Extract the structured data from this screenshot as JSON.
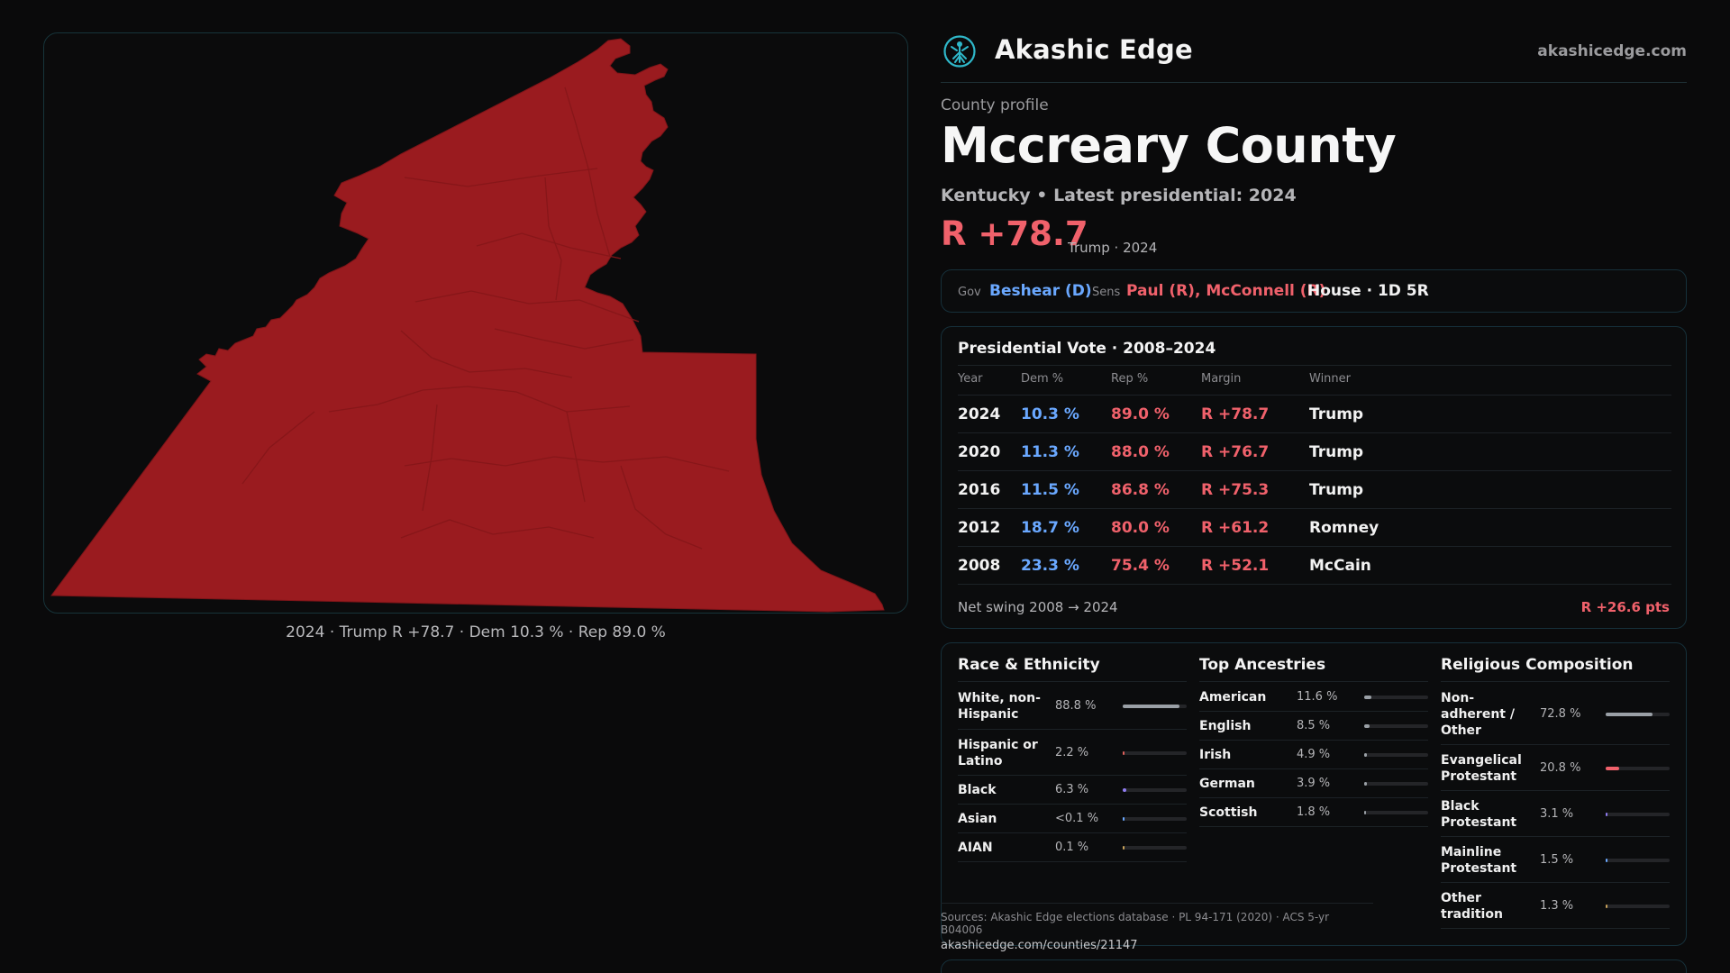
{
  "brand": {
    "name": "Akashic Edge",
    "url": "akashicedge.com",
    "logo_icon": "atom-tree-icon",
    "accent": "#2fb7c9"
  },
  "map": {
    "fill_color": "#9a1b1f",
    "caption": "2024 · Trump R +78.7 · Dem 10.3 % · Rep 89.0 %"
  },
  "profile": {
    "label": "County profile",
    "county": "Mccreary County",
    "subtitle": "Kentucky • Latest presidential: 2024",
    "margin": "R +78.7",
    "margin_note": "Trump · 2024"
  },
  "officials": {
    "gov_label": "Gov",
    "gov": "Beshear (D)",
    "sens_label": "Sens",
    "sens": "Paul (R), McConnell (R)",
    "house": "House · 1D 5R"
  },
  "presidential": {
    "title": "Presidential Vote · 2008–2024",
    "headers": [
      "Year",
      "Dem %",
      "Rep %",
      "Margin",
      "Winner"
    ],
    "rows": [
      {
        "year": "2024",
        "dem": "10.3 %",
        "rep": "89.0 %",
        "margin": "R +78.7",
        "winner": "Trump"
      },
      {
        "year": "2020",
        "dem": "11.3 %",
        "rep": "88.0 %",
        "margin": "R +76.7",
        "winner": "Trump"
      },
      {
        "year": "2016",
        "dem": "11.5 %",
        "rep": "86.8 %",
        "margin": "R +75.3",
        "winner": "Trump"
      },
      {
        "year": "2012",
        "dem": "18.7 %",
        "rep": "80.0 %",
        "margin": "R +61.2",
        "winner": "Romney"
      },
      {
        "year": "2008",
        "dem": "23.3 %",
        "rep": "75.4 %",
        "margin": "R +52.1",
        "winner": "McCain"
      }
    ],
    "swing_label": "Net swing 2008 → 2024",
    "swing_value": "R +26.6 pts"
  },
  "race": {
    "title": "Race & Ethnicity",
    "items": [
      {
        "label": "White, non-Hispanic",
        "value": "88.8 %",
        "pct": 88.8,
        "color": "#9aa0a6"
      },
      {
        "label": "Hispanic or Latino",
        "value": "2.2 %",
        "pct": 2.2,
        "color": "#e0605a"
      },
      {
        "label": "Black",
        "value": "6.3 %",
        "pct": 6.3,
        "color": "#8f7cf0"
      },
      {
        "label": "Asian",
        "value": "<0.1 %",
        "pct": 0.1,
        "color": "#6aa8ff"
      },
      {
        "label": "AIAN",
        "value": "0.1 %",
        "pct": 0.1,
        "color": "#c9a35a"
      }
    ]
  },
  "ancestry": {
    "title": "Top Ancestries",
    "items": [
      {
        "label": "American",
        "value": "11.6 %",
        "pct": 11.6,
        "color": "#9aa0a6"
      },
      {
        "label": "English",
        "value": "8.5 %",
        "pct": 8.5,
        "color": "#9aa0a6"
      },
      {
        "label": "Irish",
        "value": "4.9 %",
        "pct": 4.9,
        "color": "#9aa0a6"
      },
      {
        "label": "German",
        "value": "3.9 %",
        "pct": 3.9,
        "color": "#9aa0a6"
      },
      {
        "label": "Scottish",
        "value": "1.8 %",
        "pct": 1.8,
        "color": "#9aa0a6"
      }
    ]
  },
  "religion": {
    "title": "Religious Composition",
    "items": [
      {
        "label": "Non-adherent / Other",
        "value": "72.8 %",
        "pct": 72.8,
        "color": "#9aa0a6"
      },
      {
        "label": "Evangelical Protestant",
        "value": "20.8 %",
        "pct": 20.8,
        "color": "#f0616b"
      },
      {
        "label": "Black Protestant",
        "value": "3.1 %",
        "pct": 3.1,
        "color": "#8f7cf0"
      },
      {
        "label": "Mainline Protestant",
        "value": "1.5 %",
        "pct": 1.5,
        "color": "#6aa8ff"
      },
      {
        "label": "Other tradition",
        "value": "1.3 %",
        "pct": 1.3,
        "color": "#c9a35a"
      }
    ]
  },
  "sources": {
    "text": "Sources: Akashic Edge elections database · PL 94-171 (2020) · ACS 5-yr B04006",
    "url": "akashicedge.com/counties/21147"
  }
}
